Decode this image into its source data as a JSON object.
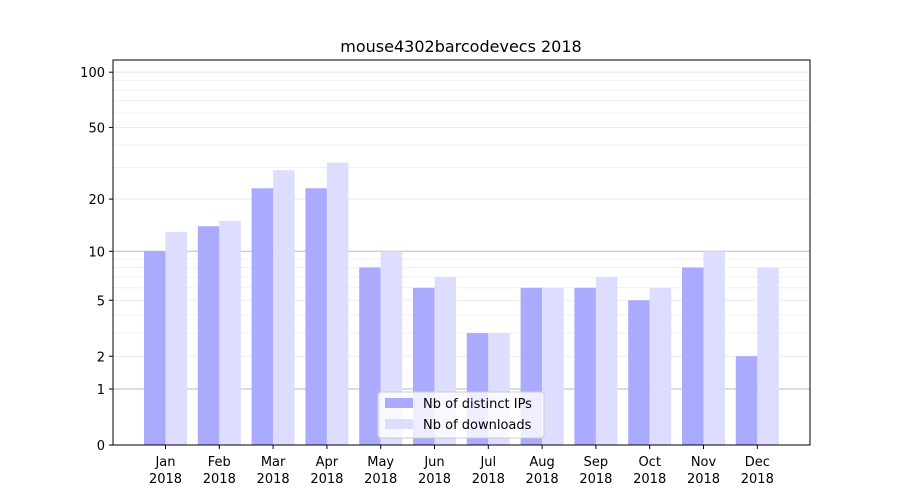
{
  "chart_data": {
    "type": "bar",
    "title": "mouse4302barcodevecs 2018",
    "xlabel": "",
    "ylabel": "",
    "yscale": "log(1+y)",
    "ylim": [
      0,
      110
    ],
    "ytick_values": [
      0,
      1,
      2,
      5,
      10,
      20,
      50,
      100
    ],
    "ytick_labels": [
      "0",
      "1",
      "2",
      "5",
      "10",
      "20",
      "50",
      "100"
    ],
    "minor_gridlines": [
      3,
      4,
      6,
      7,
      8,
      9,
      30,
      40,
      60,
      70,
      80,
      90
    ],
    "categories": [
      "Jan\n2018",
      "Feb\n2018",
      "Mar\n2018",
      "Apr\n2018",
      "May\n2018",
      "Jun\n2018",
      "Jul\n2018",
      "Aug\n2018",
      "Sep\n2018",
      "Oct\n2018",
      "Nov\n2018",
      "Dec\n2018"
    ],
    "category_months": [
      "Jan",
      "Feb",
      "Mar",
      "Apr",
      "May",
      "Jun",
      "Jul",
      "Aug",
      "Sep",
      "Oct",
      "Nov",
      "Dec"
    ],
    "category_year": "2018",
    "series": [
      {
        "name": "Nb of distinct IPs",
        "color": "#aaaaff",
        "values": [
          10,
          14,
          23,
          23,
          8,
          6,
          3,
          6,
          6,
          5,
          8,
          2
        ]
      },
      {
        "name": "Nb of downloads",
        "color": "#ddddff",
        "values": [
          13,
          15,
          29,
          32,
          10,
          7,
          3,
          6,
          7,
          6,
          10,
          8
        ]
      }
    ],
    "legend_position": "lower center",
    "grid": true
  }
}
